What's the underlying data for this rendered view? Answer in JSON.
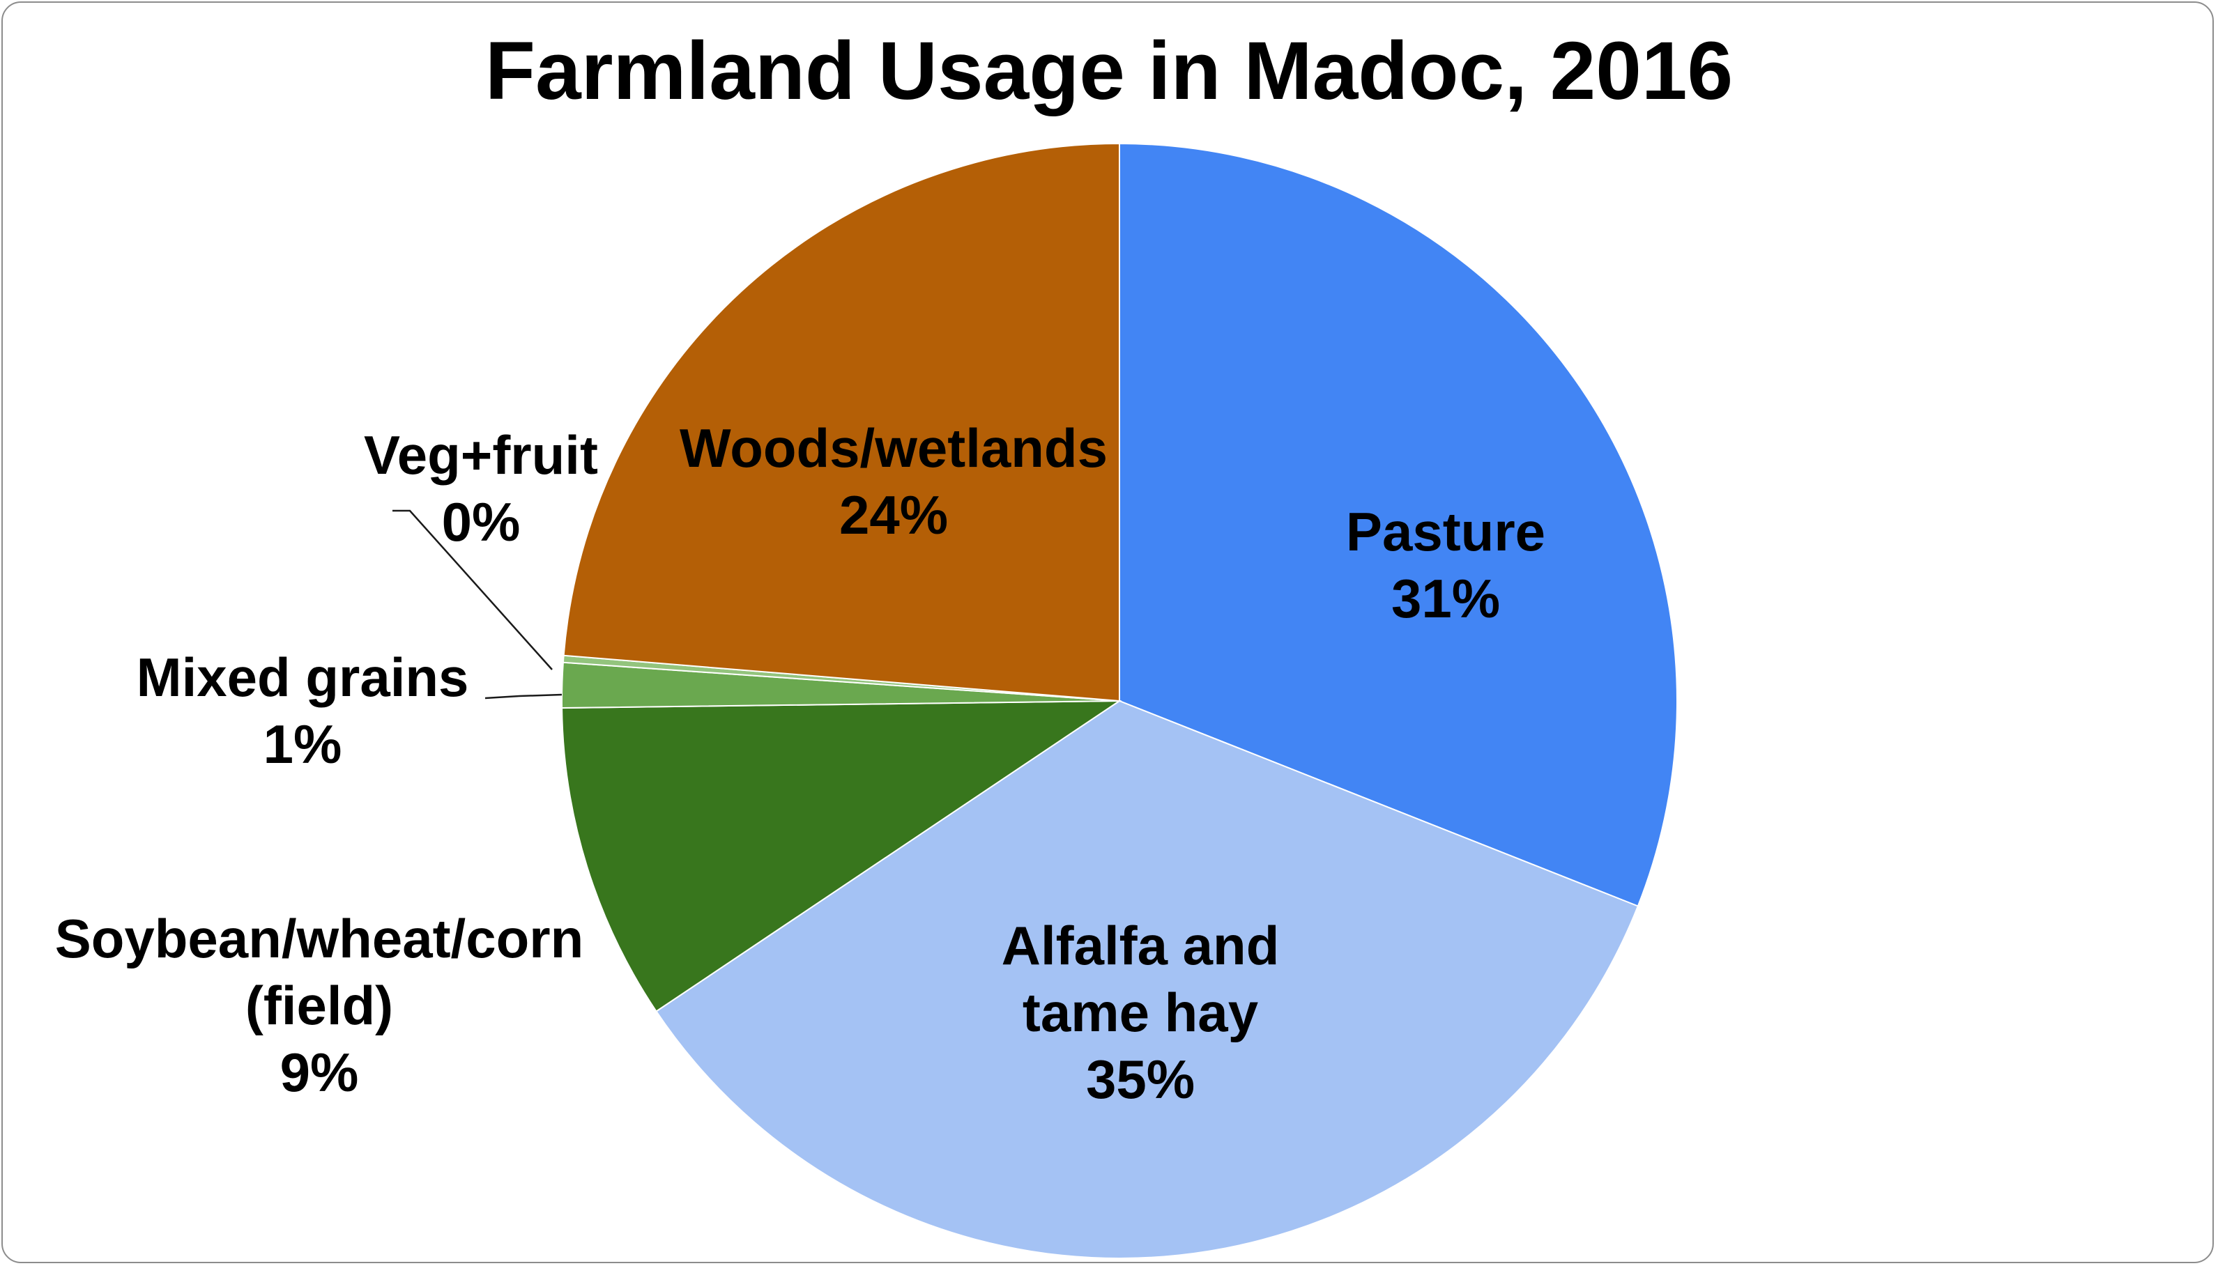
{
  "chart_data": {
    "type": "pie",
    "title": "Farmland Usage in Madoc, 2016",
    "start_angle_deg": 0,
    "direction": "clockwise",
    "slices": [
      {
        "name": "Pasture",
        "label_lines": [
          "Pasture"
        ],
        "pct_label": "31%",
        "value": 31.0,
        "color": "#4285f4"
      },
      {
        "name": "Alfalfa and tame hay",
        "label_lines": [
          "Alfalfa and",
          "tame hay"
        ],
        "pct_label": "35%",
        "value": 34.6,
        "color": "#a4c2f4"
      },
      {
        "name": "Soybean/wheat/corn (field)",
        "label_lines": [
          "Soybean/wheat/corn",
          "(field)"
        ],
        "pct_label": "9%",
        "value": 9.2,
        "color": "#38761d"
      },
      {
        "name": "Mixed grains",
        "label_lines": [
          "Mixed grains"
        ],
        "pct_label": "1%",
        "value": 1.3,
        "color": "#6aa84f"
      },
      {
        "name": "Veg+fruit",
        "label_lines": [
          "Veg+fruit"
        ],
        "pct_label": "0%",
        "value": 0.2,
        "color": "#93c47d"
      },
      {
        "name": "Woods/wetlands",
        "label_lines": [
          "Woods/wetlands"
        ],
        "pct_label": "24%",
        "value": 23.7,
        "color": "#b45f06"
      }
    ]
  }
}
